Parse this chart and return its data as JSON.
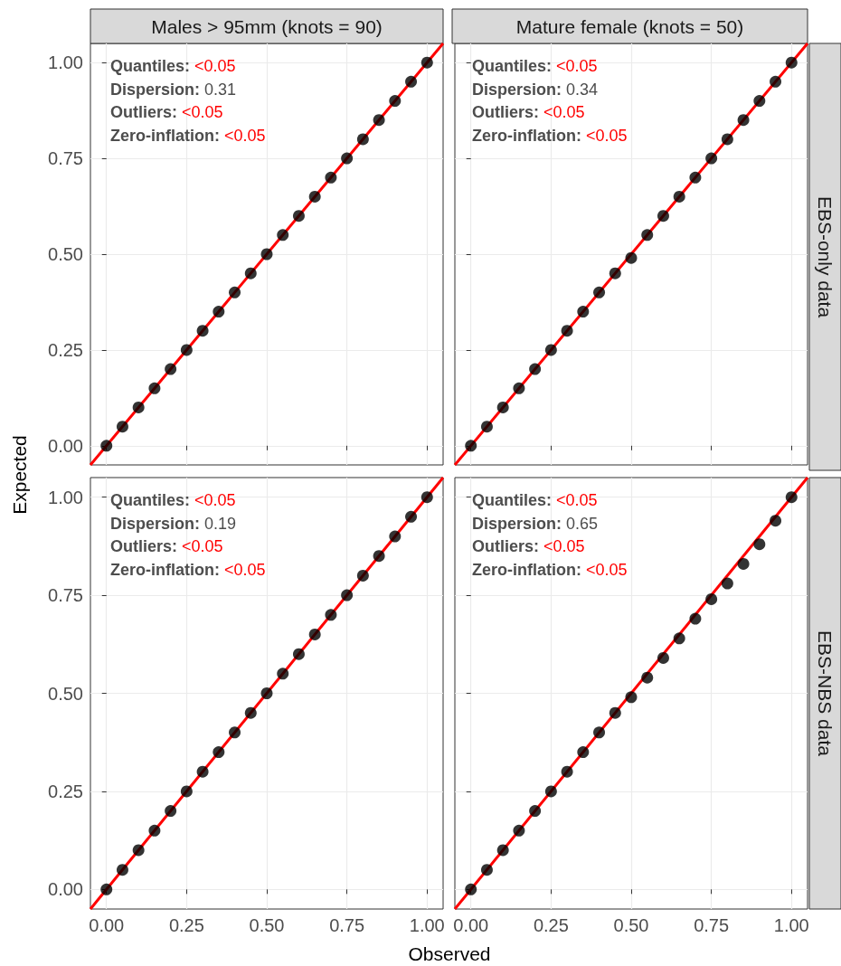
{
  "chart_data": [
    {
      "type": "scatter",
      "title": "Males > 95mm (knots = 90)",
      "ylabel": "Expected",
      "xlim": [
        -0.05,
        1.05
      ],
      "ylim": [
        -0.05,
        1.05
      ],
      "grid": true,
      "marker": "circle",
      "tick_labels": "y",
      "yticks": [
        {
          "value": 0,
          "label": "0.00"
        },
        {
          "value": 0.25,
          "label": "0.25"
        },
        {
          "value": 0.5,
          "label": "0.50"
        },
        {
          "value": 0.75,
          "label": "0.75"
        },
        {
          "value": 1,
          "label": "1.00"
        }
      ],
      "xticks": [
        {
          "value": 0,
          "label": null
        },
        {
          "value": 0.25,
          "label": null
        },
        {
          "value": 0.5,
          "label": null
        },
        {
          "value": 0.75,
          "label": null
        },
        {
          "value": 1,
          "label": null
        }
      ],
      "annotations": [
        "Quantiles: <0.05",
        "Dispersion: 0.31",
        "Outliers: <0.05",
        "Zero-inflation: <0.05"
      ],
      "series": [
        {
          "color": "#000000",
          "x": [
            0,
            0.05,
            0.1,
            0.15,
            0.2,
            0.25,
            0.3,
            0.35,
            0.4,
            0.45,
            0.5,
            0.55,
            0.6,
            0.65,
            0.7,
            0.75,
            0.8,
            0.85,
            0.9,
            0.95,
            1
          ],
          "values": [
            0,
            0.05,
            0.1,
            0.15,
            0.2,
            0.25,
            0.3,
            0.35,
            0.4,
            0.45,
            0.5,
            0.55,
            0.6,
            0.65,
            0.7,
            0.75,
            0.8,
            0.85,
            0.9,
            0.95,
            1
          ]
        },
        {
          "type": "line",
          "color": "#ff0000",
          "marker": "none",
          "x": [
            -0.05,
            1.05
          ],
          "values": [
            -0.05,
            1.05
          ]
        }
      ]
    },
    {
      "type": "scatter",
      "title": "Mature female (knots = 50)",
      "subtitle": "EBS-only data",
      "xlim": [
        -0.05,
        1.05
      ],
      "ylim": [
        -0.05,
        1.05
      ],
      "grid": true,
      "marker": "circle",
      "tick_labels": false,
      "yticks": [
        {
          "value": 0,
          "label": null
        },
        {
          "value": 0.25,
          "label": null
        },
        {
          "value": 0.5,
          "label": null
        },
        {
          "value": 0.75,
          "label": null
        },
        {
          "value": 1,
          "label": null
        }
      ],
      "xticks": [
        {
          "value": 0,
          "label": null
        },
        {
          "value": 0.25,
          "label": null
        },
        {
          "value": 0.5,
          "label": null
        },
        {
          "value": 0.75,
          "label": null
        },
        {
          "value": 1,
          "label": null
        }
      ],
      "annotations": [
        "Quantiles: <0.05",
        "Dispersion: 0.34",
        "Outliers: <0.05",
        "Zero-inflation: <0.05"
      ],
      "series": [
        {
          "color": "#000000",
          "x": [
            0,
            0.05,
            0.1,
            0.15,
            0.2,
            0.25,
            0.3,
            0.35,
            0.4,
            0.45,
            0.5,
            0.55,
            0.6,
            0.65,
            0.7,
            0.75,
            0.8,
            0.85,
            0.9,
            0.95,
            1
          ],
          "values": [
            0,
            0.05,
            0.1,
            0.15,
            0.2,
            0.25,
            0.3,
            0.35,
            0.4,
            0.45,
            0.49,
            0.55,
            0.6,
            0.65,
            0.7,
            0.75,
            0.8,
            0.85,
            0.9,
            0.95,
            1
          ]
        },
        {
          "type": "line",
          "color": "#ff0000",
          "marker": "none",
          "x": [
            -0.05,
            1.05
          ],
          "values": [
            -0.05,
            1.05
          ]
        }
      ]
    },
    {
      "type": "scatter",
      "xlabel": "Observed",
      "xlim": [
        -0.05,
        1.05
      ],
      "ylim": [
        -0.05,
        1.05
      ],
      "grid": true,
      "marker": "circle",
      "yticks": [
        {
          "value": 0,
          "label": "0.00"
        },
        {
          "value": 0.25,
          "label": "0.25"
        },
        {
          "value": 0.5,
          "label": "0.50"
        },
        {
          "value": 0.75,
          "label": "0.75"
        },
        {
          "value": 1,
          "label": "1.00"
        }
      ],
      "xticks": [
        {
          "value": 0,
          "label": "0.00"
        },
        {
          "value": 0.25,
          "label": "0.25"
        },
        {
          "value": 0.5,
          "label": "0.50"
        },
        {
          "value": 0.75,
          "label": "0.75"
        },
        {
          "value": 1,
          "label": "1.00"
        }
      ],
      "annotations": [
        "Quantiles: <0.05",
        "Dispersion: 0.19",
        "Outliers: <0.05",
        "Zero-inflation: <0.05"
      ],
      "series": [
        {
          "color": "#000000",
          "x": [
            0,
            0.05,
            0.1,
            0.15,
            0.2,
            0.25,
            0.3,
            0.35,
            0.4,
            0.45,
            0.5,
            0.55,
            0.6,
            0.65,
            0.7,
            0.75,
            0.8,
            0.85,
            0.9,
            0.95,
            1
          ],
          "values": [
            0,
            0.05,
            0.1,
            0.15,
            0.2,
            0.25,
            0.3,
            0.35,
            0.4,
            0.45,
            0.5,
            0.55,
            0.6,
            0.65,
            0.7,
            0.75,
            0.8,
            0.85,
            0.9,
            0.95,
            1
          ]
        },
        {
          "type": "line",
          "color": "#ff0000",
          "marker": "none",
          "x": [
            -0.05,
            1.05
          ],
          "values": [
            -0.05,
            1.05
          ]
        }
      ]
    },
    {
      "type": "scatter",
      "subtitle": "EBS-NBS data",
      "xlim": [
        -0.05,
        1.05
      ],
      "ylim": [
        -0.05,
        1.05
      ],
      "grid": true,
      "marker": "circle",
      "tick_labels": "x",
      "yticks": [
        {
          "value": 0,
          "label": null
        },
        {
          "value": 0.25,
          "label": null
        },
        {
          "value": 0.5,
          "label": null
        },
        {
          "value": 0.75,
          "label": null
        },
        {
          "value": 1,
          "label": null
        }
      ],
      "xticks": [
        {
          "value": 0,
          "label": "0.00"
        },
        {
          "value": 0.25,
          "label": "0.25"
        },
        {
          "value": 0.5,
          "label": "0.50"
        },
        {
          "value": 0.75,
          "label": "0.75"
        },
        {
          "value": 1,
          "label": "1.00"
        }
      ],
      "annotations": [
        "Quantiles: <0.05",
        "Dispersion: 0.65",
        "Outliers: <0.05",
        "Zero-inflation: <0.05"
      ],
      "series": [
        {
          "color": "#000000",
          "x": [
            0,
            0.05,
            0.1,
            0.15,
            0.2,
            0.25,
            0.3,
            0.35,
            0.4,
            0.45,
            0.5,
            0.55,
            0.6,
            0.65,
            0.7,
            0.75,
            0.8,
            0.85,
            0.9,
            0.95,
            1
          ],
          "values": [
            0,
            0.05,
            0.1,
            0.15,
            0.2,
            0.25,
            0.3,
            0.35,
            0.4,
            0.45,
            0.49,
            0.54,
            0.59,
            0.64,
            0.69,
            0.74,
            0.78,
            0.83,
            0.88,
            0.94,
            1
          ]
        },
        {
          "type": "line",
          "color": "#ff0000",
          "marker": "none",
          "x": [
            -0.05,
            1.05
          ],
          "values": [
            -0.05,
            1.05
          ]
        }
      ]
    }
  ]
}
